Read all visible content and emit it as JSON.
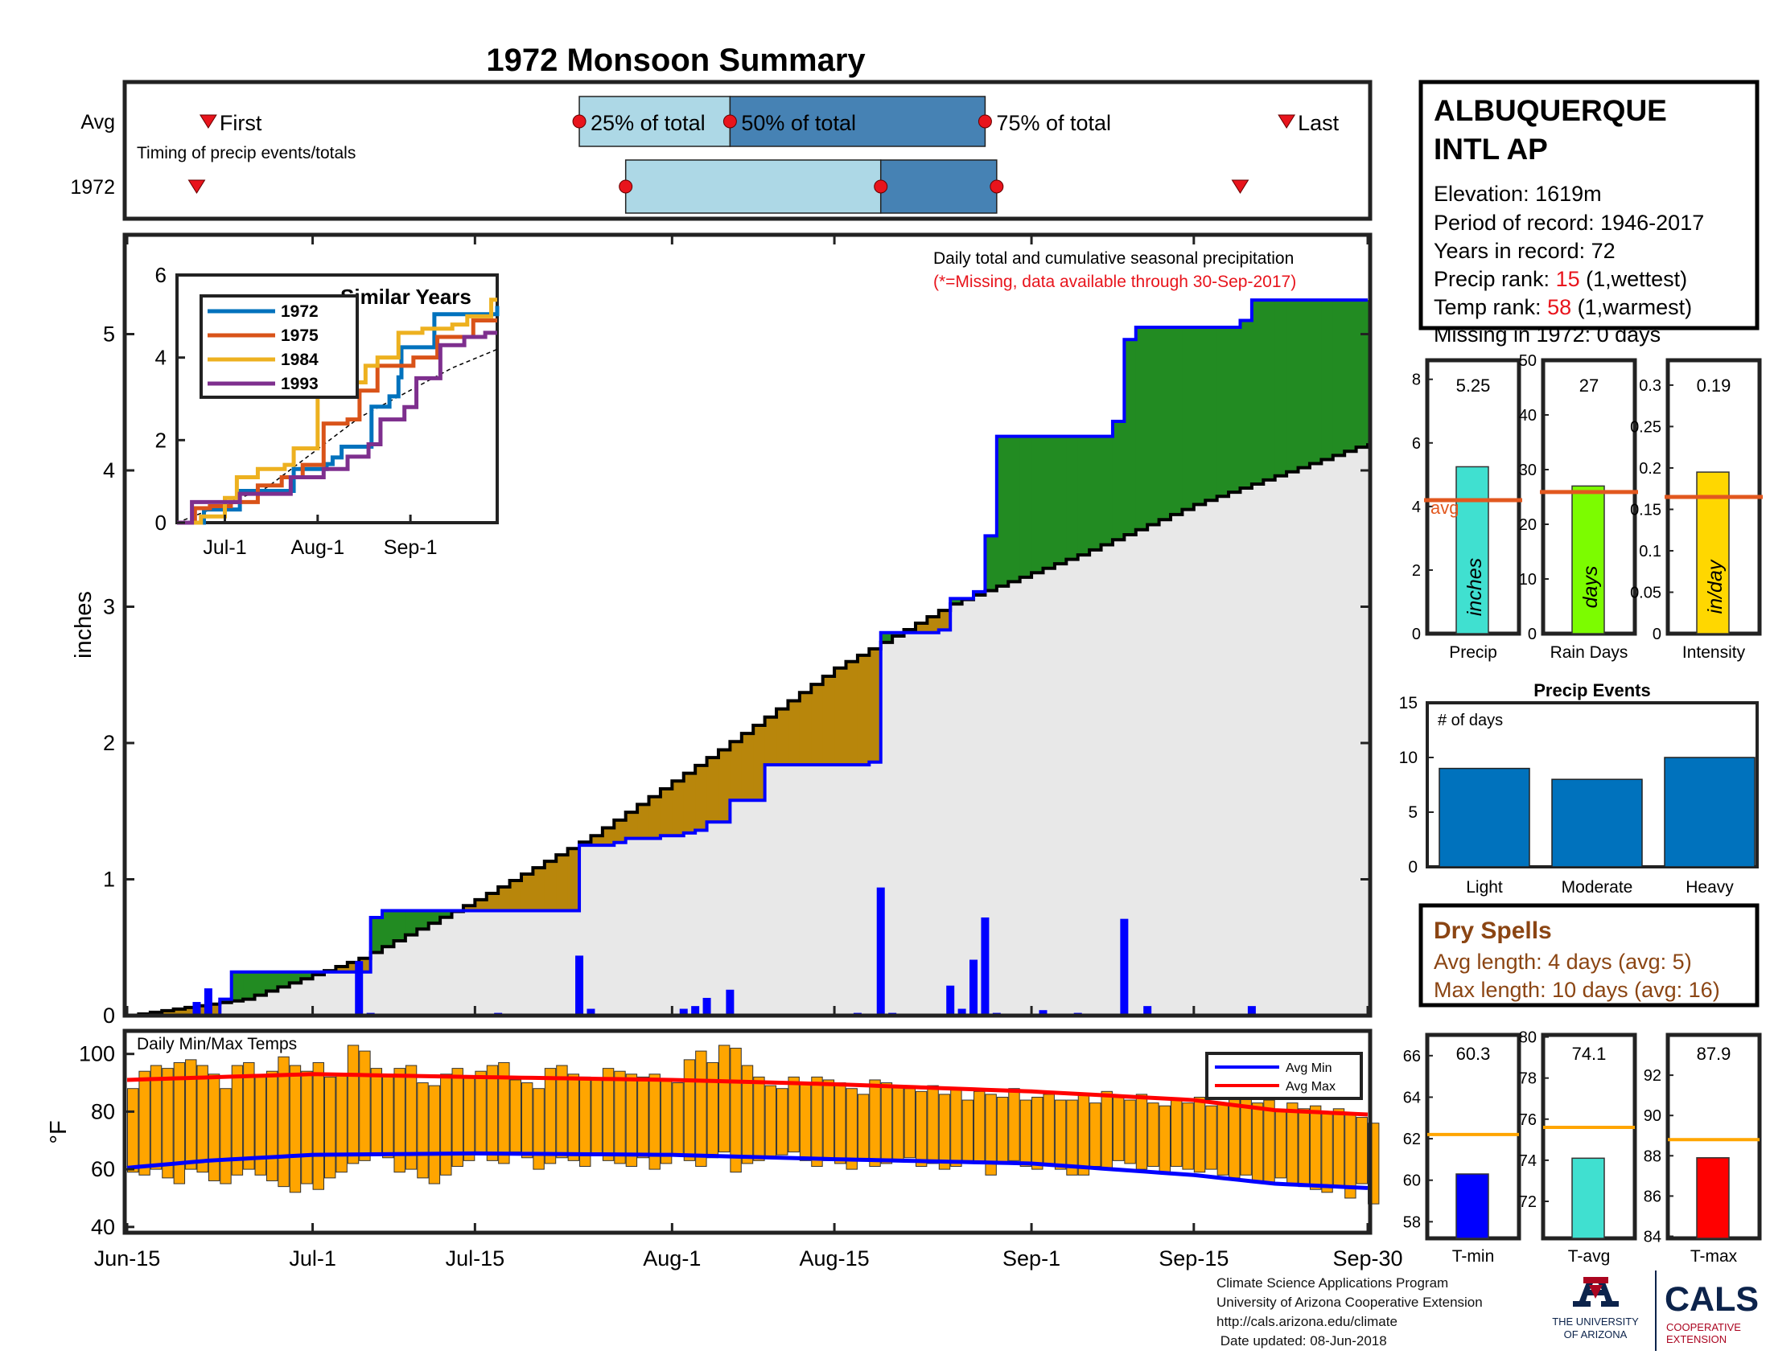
{
  "page": {
    "title": "1972 Monsoon Summary",
    "footer": {
      "line1": "Climate Science Applications Program",
      "line2": "University of Arizona Cooperative Extension",
      "line3": "http://cals.arizona.edu/climate",
      "line4": " Date updated: 08-Jun-2018"
    },
    "logo": {
      "ua_text1": "THE UNIVERSITY",
      "ua_text2": "OF ARIZONA",
      "cals_text": "CALS",
      "cals_sub1": "COOPERATIVE",
      "cals_sub2": "EXTENSION",
      "ua_color": "#0c234b",
      "accent_color": "#ab0520"
    },
    "colors": {
      "title": "#e8141c",
      "avg_light": "#add8e6",
      "avg_dark": "#4682b4",
      "marker": "#e8141c",
      "wet_above": "#228b22",
      "dry_below": "#b8860b",
      "climatology_fill": "#e8e8e8",
      "observed_line": "#0000ff",
      "daily_bar": "#0000ff",
      "temp_bar": "#ffa500",
      "avg_min_line": "#0000ff",
      "avg_max_line": "#ff0000",
      "precip_bar": "#40e0d0",
      "raindays_bar": "#7cfc00",
      "intensity_bar": "#ffd700",
      "avg_ref_line": "#e2581f",
      "events_bar": "#0072bd",
      "dryspell_text": "#8b4513",
      "tmin_bar": "#0000ff",
      "tavg_bar": "#40e0d0",
      "tmax_bar": "#ff0000",
      "temp_avg_line": "#ffa500"
    }
  },
  "station": {
    "name_line1": "ALBUQUERQUE",
    "name_line2": "INTL AP",
    "elevation": "Elevation: 1619m",
    "period": "Period of record: 1946-2017",
    "years": "Years in record: 72",
    "precip_rank_label": "Precip rank: ",
    "precip_rank_value": "15",
    "precip_rank_note": " (1,wettest)",
    "temp_rank_label": "Temp rank: ",
    "temp_rank_value": "58",
    "temp_rank_note": " (1,warmest)",
    "missing": "Missing in 1972: 0 days"
  },
  "dry_spells": {
    "title": "Dry Spells",
    "avg_length": "Avg length: 4 days (avg: 5)",
    "max_length": "Max length: 10 days (avg: 16)"
  },
  "chart_data": [
    {
      "id": "timing",
      "type": "timeline",
      "subtitle": "Timing of precip events/totals",
      "rows": [
        "Avg",
        "1972"
      ],
      "avg": {
        "first": "Jun-22",
        "p25": "Jul-24",
        "p50": "Aug-6",
        "p75": "Aug-28",
        "last": "Sep-23"
      },
      "year": {
        "first": "Jun-21",
        "p25": "Jul-28",
        "p50": "Aug-19",
        "p75": "Aug-29",
        "last": "Sep-19"
      },
      "labels": {
        "first": "First",
        "p25": "25% of total",
        "p50": "50% of total",
        "p75": "75% of total",
        "last": "Last"
      }
    },
    {
      "id": "cumulative",
      "type": "area",
      "title": "Daily total and cumulative seasonal precipitation",
      "subtitle": "(*=Missing, data available through 30-Sep-2017)",
      "ylabel": "inches",
      "ylim": [
        0,
        6
      ],
      "yticks": [
        0,
        1,
        2,
        3,
        4,
        5
      ],
      "x_range": [
        "Jun-15",
        "Sep-30"
      ],
      "xticks": [
        "Jun-15",
        "Jul-1",
        "Jul-15",
        "Aug-1",
        "Aug-15",
        "Sep-1",
        "Sep-15",
        "Sep-30"
      ],
      "observed_cumulative": {
        "x": [
          "Jun-15",
          "Jun-22",
          "Jun-23",
          "Jun-24",
          "Jul-5",
          "Jul-6",
          "Jul-7",
          "Jul-23",
          "Jul-24",
          "Jul-27",
          "Jul-28",
          "Jul-31",
          "Aug-2",
          "Aug-3",
          "Aug-4",
          "Aug-6",
          "Aug-9",
          "Aug-18",
          "Aug-19",
          "Aug-24",
          "Aug-25",
          "Aug-27",
          "Aug-28",
          "Aug-29",
          "Sep-8",
          "Sep-9",
          "Sep-10",
          "Sep-19",
          "Sep-20",
          "Sep-30"
        ],
        "y": [
          0,
          0,
          0.12,
          0.32,
          0.32,
          0.72,
          0.77,
          0.77,
          1.25,
          1.27,
          1.3,
          1.32,
          1.34,
          1.36,
          1.42,
          1.58,
          1.84,
          1.86,
          2.81,
          2.83,
          3.06,
          3.11,
          3.52,
          4.25,
          4.36,
          4.96,
          5.05,
          5.1,
          5.25,
          5.25
        ]
      },
      "average_cumulative": {
        "x": [
          "Jun-15",
          "Jun-25",
          "Jul-5",
          "Jul-15",
          "Jul-25",
          "Aug-5",
          "Aug-15",
          "Aug-25",
          "Sep-5",
          "Sep-15",
          "Sep-25",
          "Sep-30"
        ],
        "y": [
          0,
          0.12,
          0.42,
          0.85,
          1.32,
          1.95,
          2.55,
          3.02,
          3.38,
          3.75,
          4.05,
          4.2
        ]
      },
      "daily_precip": {
        "x": [
          "Jun-21",
          "Jun-22",
          "Jul-5",
          "Jul-6",
          "Jul-17",
          "Jul-24",
          "Jul-25",
          "Aug-2",
          "Aug-3",
          "Aug-4",
          "Aug-6",
          "Aug-17",
          "Aug-19",
          "Aug-20",
          "Aug-25",
          "Aug-26",
          "Aug-27",
          "Aug-28",
          "Aug-29",
          "Sep-2",
          "Sep-5",
          "Sep-9",
          "Sep-11",
          "Sep-20"
        ],
        "y": [
          0.1,
          0.2,
          0.4,
          0.02,
          0.02,
          0.44,
          0.05,
          0.05,
          0.07,
          0.13,
          0.19,
          0.02,
          0.94,
          0.02,
          0.22,
          0.05,
          0.41,
          0.72,
          0.02,
          0.04,
          0.02,
          0.71,
          0.07,
          0.07
        ]
      }
    },
    {
      "id": "similar_years",
      "type": "line",
      "title": "Similar Years",
      "ylim": [
        0,
        6
      ],
      "yticks": [
        0,
        2,
        4,
        6
      ],
      "xticks": [
        "Jul-1",
        "Aug-1",
        "Sep-1"
      ],
      "series": [
        {
          "name": "1972",
          "color": "#0072bd",
          "x": [
            "Jun-15",
            "Jun-22",
            "Jun-24",
            "Jul-6",
            "Jul-24",
            "Aug-4",
            "Aug-6",
            "Aug-9",
            "Aug-19",
            "Aug-25",
            "Aug-28",
            "Aug-29",
            "Sep-9",
            "Sep-30"
          ],
          "y": [
            0,
            0,
            0.32,
            0.77,
            1.3,
            1.42,
            1.58,
            1.84,
            2.81,
            3.06,
            3.52,
            4.25,
            5.05,
            5.25
          ]
        },
        {
          "name": "1975",
          "color": "#d95319",
          "x": [
            "Jun-15",
            "Jun-21",
            "Jun-26",
            "Jul-3",
            "Jul-12",
            "Jul-20",
            "Jul-27",
            "Aug-3",
            "Aug-11",
            "Aug-15",
            "Aug-21",
            "Sep-2",
            "Sep-10",
            "Sep-22",
            "Sep-30"
          ],
          "y": [
            0,
            0.35,
            0.4,
            0.5,
            0.9,
            1.1,
            1.4,
            2.4,
            2.5,
            3.2,
            3.8,
            4.0,
            4.5,
            4.9,
            4.9
          ]
        },
        {
          "name": "1984",
          "color": "#edb120",
          "x": [
            "Jun-15",
            "Jun-23",
            "Jul-1",
            "Jul-5",
            "Jul-12",
            "Jul-21",
            "Jul-24",
            "Aug-1",
            "Aug-4",
            "Aug-11",
            "Aug-17",
            "Aug-21",
            "Aug-28",
            "Sep-5",
            "Sep-15",
            "Sep-20",
            "Sep-28",
            "Sep-30"
          ],
          "y": [
            0,
            0.15,
            0.6,
            1.1,
            1.3,
            1.4,
            1.8,
            3.1,
            3.3,
            3.4,
            3.8,
            4.0,
            4.6,
            4.7,
            4.8,
            5.0,
            5.4,
            5.4
          ]
        },
        {
          "name": "1993",
          "color": "#7e2f8e",
          "x": [
            "Jun-15",
            "Jun-20",
            "Jun-28",
            "Jul-6",
            "Jul-13",
            "Jul-23",
            "Aug-3",
            "Aug-11",
            "Aug-18",
            "Aug-22",
            "Aug-30",
            "Sep-3",
            "Sep-11",
            "Sep-19",
            "Sep-26",
            "Sep-30"
          ],
          "y": [
            0,
            0.5,
            0.5,
            0.7,
            0.7,
            1.1,
            1.3,
            1.6,
            1.9,
            2.5,
            2.8,
            3.5,
            4.3,
            4.5,
            4.6,
            4.6
          ]
        }
      ],
      "average": {
        "x": [
          "Jun-15",
          "Jul-15",
          "Aug-15",
          "Sep-15",
          "Sep-30"
        ],
        "y": [
          0,
          0.85,
          2.55,
          3.75,
          4.2
        ]
      }
    },
    {
      "id": "temps",
      "type": "bar",
      "title": "Daily Min/Max Temps",
      "ylabel": "°F",
      "ylim": [
        38,
        108
      ],
      "yticks": [
        40,
        60,
        80,
        100
      ],
      "legend": {
        "avg_min": "Avg Min",
        "avg_max": "Avg Max"
      },
      "daily_min": [
        59,
        58,
        60,
        57,
        55,
        60,
        59,
        56,
        55,
        58,
        60,
        58,
        56,
        54,
        52,
        55,
        53,
        57,
        59,
        62,
        63,
        65,
        64,
        59,
        60,
        57,
        55,
        58,
        61,
        63,
        65,
        63,
        62,
        66,
        64,
        60,
        62,
        64,
        63,
        61,
        65,
        63,
        62,
        61,
        64,
        60,
        62,
        65,
        63,
        61,
        64,
        66,
        59,
        62,
        63,
        64,
        65,
        66,
        63,
        61,
        63,
        62,
        60,
        63,
        61,
        62,
        63,
        64,
        61,
        62,
        60,
        61,
        63,
        62,
        58,
        62,
        63,
        61,
        60,
        62,
        60,
        58,
        58,
        61,
        60,
        63,
        62,
        60,
        61,
        59,
        61,
        60,
        59,
        60,
        58,
        57,
        58,
        56,
        55,
        57,
        55,
        54,
        53,
        52,
        54,
        50,
        55,
        48
      ],
      "daily_max": [
        88,
        94,
        96,
        95,
        97,
        98,
        96,
        93,
        88,
        96,
        97,
        92,
        94,
        99,
        96,
        94,
        97,
        92,
        93,
        103,
        101,
        95,
        93,
        95,
        96,
        90,
        89,
        93,
        95,
        92,
        94,
        96,
        97,
        91,
        90,
        88,
        95,
        96,
        93,
        92,
        91,
        95,
        94,
        93,
        92,
        93,
        91,
        90,
        98,
        101,
        97,
        103,
        102,
        96,
        92,
        89,
        88,
        92,
        90,
        92,
        91,
        90,
        88,
        86,
        91,
        90,
        89,
        88,
        87,
        89,
        86,
        88,
        84,
        87,
        86,
        85,
        88,
        84,
        85,
        86,
        84,
        84,
        86,
        83,
        87,
        85,
        84,
        86,
        83,
        82,
        84,
        83,
        85,
        82,
        83,
        86,
        85,
        83,
        84,
        80,
        83,
        81,
        82,
        80,
        81,
        79,
        78,
        76
      ],
      "avg_min_x": [
        "Jun-15",
        "Jun-22",
        "Jul-1",
        "Jul-15",
        "Aug-1",
        "Aug-15",
        "Sep-1",
        "Sep-15",
        "Sep-22",
        "Sep-30"
      ],
      "avg_min_y": [
        60.5,
        63,
        65,
        65.5,
        65,
        63.5,
        62,
        58,
        55,
        53.5
      ],
      "avg_max_x": [
        "Jun-15",
        "Jul-1",
        "Jul-15",
        "Aug-1",
        "Aug-15",
        "Sep-1",
        "Sep-15",
        "Sep-22",
        "Sep-30"
      ],
      "avg_max_y": [
        91,
        93,
        92,
        91,
        89.5,
        87,
        84,
        80.5,
        79
      ]
    },
    {
      "id": "seasonal_bars",
      "type": "bar",
      "panels": [
        {
          "label": "Precip",
          "unit": "inches",
          "value": 5.25,
          "display": "5.25",
          "avg": 4.2,
          "ylim": [
            0,
            8.6
          ],
          "yticks": [
            0,
            2,
            4,
            6,
            8
          ],
          "ytick_labels": [
            "0",
            "2",
            "4",
            "6",
            "8"
          ],
          "avg_label": "avg"
        },
        {
          "label": "Rain Days",
          "unit": "days",
          "value": 27,
          "display": "27",
          "avg": 25.9,
          "ylim": [
            0,
            50
          ],
          "yticks": [
            0,
            10,
            20,
            30,
            40,
            50
          ],
          "ytick_labels": [
            "0",
            "10",
            "20",
            "30",
            "40",
            "50"
          ]
        },
        {
          "label": "Intensity",
          "unit": "in/day",
          "value": 0.195,
          "display": "0.19",
          "avg": 0.165,
          "ylim": [
            0,
            0.33
          ],
          "yticks": [
            0,
            0.05,
            0.1,
            0.15,
            0.2,
            0.25,
            0.3
          ],
          "ytick_labels": [
            "0",
            "0.05",
            "0.1",
            "0.15",
            "0.2",
            "0.25",
            "0.3"
          ]
        }
      ]
    },
    {
      "id": "precip_events",
      "type": "bar",
      "title": "Precip Events",
      "ylabel": "# of days",
      "ylim": [
        0,
        15
      ],
      "yticks": [
        0,
        5,
        10,
        15
      ],
      "categories": [
        "Light",
        "Moderate",
        "Heavy"
      ],
      "values": [
        9,
        8,
        10
      ]
    },
    {
      "id": "seasonal_temps",
      "type": "bar",
      "panels": [
        {
          "label": "T-min",
          "value": 60.3,
          "display": "60.3",
          "avg": 62.2,
          "ylim": [
            57.2,
            67
          ],
          "yticks": [
            58,
            60,
            62,
            64,
            66
          ],
          "ytick_labels": [
            "58",
            "60",
            "62",
            "64",
            "66"
          ]
        },
        {
          "label": "T-avg",
          "value": 74.1,
          "display": "74.1",
          "avg": 75.6,
          "ylim": [
            70.2,
            80.1
          ],
          "yticks": [
            72,
            74,
            76,
            78,
            80
          ],
          "ytick_labels": [
            "72",
            "74",
            "76",
            "78",
            "80"
          ]
        },
        {
          "label": "T-max",
          "value": 87.9,
          "display": "87.9",
          "avg": 88.8,
          "ylim": [
            83.9,
            94
          ],
          "yticks": [
            84,
            86,
            88,
            90,
            92
          ],
          "ytick_labels": [
            "84",
            "86",
            "88",
            "90",
            "92"
          ]
        }
      ]
    }
  ]
}
